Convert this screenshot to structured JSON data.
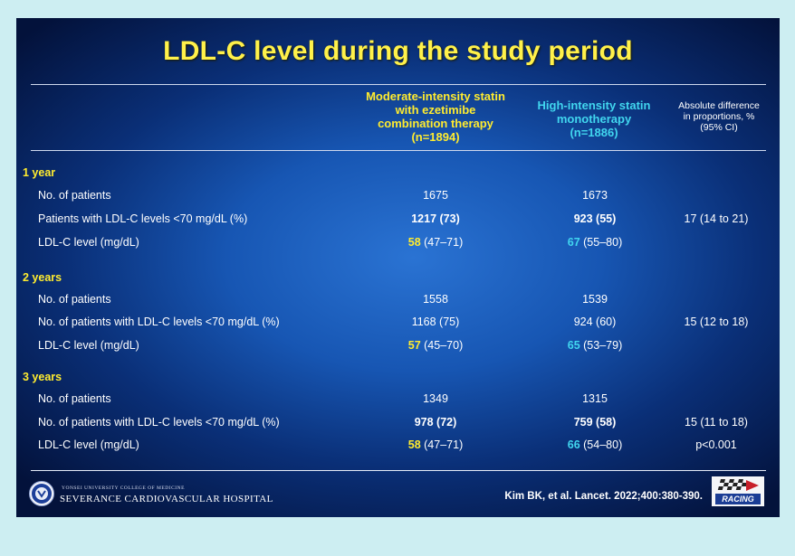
{
  "title": "LDL-C level during the study period",
  "columns": {
    "moderate": [
      "Moderate-intensity statin",
      "with ezetimibe",
      "combination therapy",
      "(n=1894)"
    ],
    "high": [
      "High-intensity statin",
      "monotherapy",
      "(n=1886)"
    ],
    "absdiff": [
      "Absolute difference",
      "in proportions, %",
      "(95% CI)"
    ]
  },
  "sections": [
    {
      "label": "1 year",
      "rows": [
        {
          "label": "No. of patients",
          "mod": "1675",
          "high": "1673",
          "diff": ""
        },
        {
          "label": "Patients with LDL-C levels <70 mg/dL (%)",
          "mod": "1217 (73)",
          "high": "923 (55)",
          "diff": "17 (14 to 21)"
        },
        {
          "label": "LDL-C level (mg/dL)",
          "mod_main": "58",
          "mod_rest": " (47–71)",
          "high_main": "67",
          "high_rest": " (55–80)",
          "diff": ""
        }
      ]
    },
    {
      "label": "2 years",
      "rows": [
        {
          "label": "No. of patients",
          "mod": "1558",
          "high": "1539",
          "diff": ""
        },
        {
          "label": "No. of patients with LDL-C levels <70 mg/dL (%)",
          "mod": "1168 (75)",
          "high": "924 (60)",
          "diff": "15 (12 to 18)"
        },
        {
          "label": "LDL-C level (mg/dL)",
          "mod_main": "57",
          "mod_rest": " (45–70)",
          "high_main": "65",
          "high_rest": " (53–79)",
          "diff": ""
        }
      ]
    },
    {
      "label": "3 years",
      "rows": [
        {
          "label": "No. of patients",
          "mod": "1349",
          "high": "1315",
          "diff": ""
        },
        {
          "label": "No. of patients with LDL-C levels <70 mg/dL (%)",
          "mod": "978 (72)",
          "high": "759 (58)",
          "diff": "15 (11 to 18)"
        },
        {
          "label": "LDL-C level (mg/dL)",
          "mod_main": "58",
          "mod_rest": " (47–71)",
          "high_main": "66",
          "high_rest": " (54–80)",
          "diff": "p<0.001"
        }
      ]
    }
  ],
  "footer": {
    "university": "YONSEI UNIVERSITY COLLEGE OF MEDICINE",
    "hospital": "SEVERANCE CARDIOVASCULAR HOSPITAL",
    "citation": "Kim BK, et al. Lancet. 2022;400:380-390.",
    "racing_logo": "RACING"
  },
  "colors": {
    "yellow": "#ffec2f",
    "cyan": "#41d6ef",
    "title": "#fff14a"
  }
}
